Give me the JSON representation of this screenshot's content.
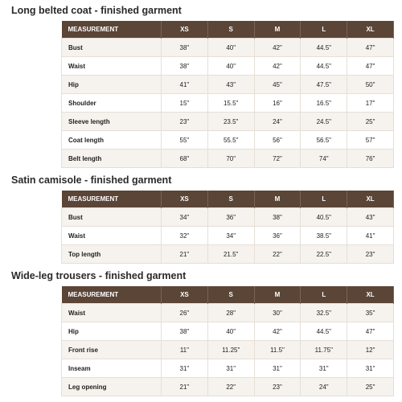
{
  "sections": [
    {
      "title": "Long belted coat - finished garment",
      "headers": [
        "MEASUREMENT",
        "XS",
        "S",
        "M",
        "L",
        "XL"
      ],
      "rows": [
        [
          "Bust",
          "38\"",
          "40\"",
          "42\"",
          "44.5\"",
          "47\""
        ],
        [
          "Waist",
          "38\"",
          "40\"",
          "42\"",
          "44.5\"",
          "47\""
        ],
        [
          "Hip",
          "41\"",
          "43\"",
          "45\"",
          "47.5\"",
          "50\""
        ],
        [
          "Shoulder",
          "15\"",
          "15.5\"",
          "16\"",
          "16.5\"",
          "17\""
        ],
        [
          "Sleeve length",
          "23\"",
          "23.5\"",
          "24\"",
          "24.5\"",
          "25\""
        ],
        [
          "Coat length",
          "55\"",
          "55.5\"",
          "56\"",
          "56.5\"",
          "57\""
        ],
        [
          "Belt length",
          "68\"",
          "70\"",
          "72\"",
          "74\"",
          "76\""
        ]
      ]
    },
    {
      "title": "Satin camisole - finished garment",
      "headers": [
        "MEASUREMENT",
        "XS",
        "S",
        "M",
        "L",
        "XL"
      ],
      "rows": [
        [
          "Bust",
          "34\"",
          "36\"",
          "38\"",
          "40.5\"",
          "43\""
        ],
        [
          "Waist",
          "32\"",
          "34\"",
          "36\"",
          "38.5\"",
          "41\""
        ],
        [
          "Top length",
          "21\"",
          "21.5\"",
          "22\"",
          "22.5\"",
          "23\""
        ]
      ]
    },
    {
      "title": "Wide-leg trousers - finished garment",
      "headers": [
        "MEASUREMENT",
        "XS",
        "S",
        "M",
        "L",
        "XL"
      ],
      "rows": [
        [
          "Waist",
          "26\"",
          "28\"",
          "30\"",
          "32.5\"",
          "35\""
        ],
        [
          "Hip",
          "38\"",
          "40\"",
          "42\"",
          "44.5\"",
          "47\""
        ],
        [
          "Front rise",
          "11\"",
          "11.25\"",
          "11.5\"",
          "11.75\"",
          "12\""
        ],
        [
          "Inseam",
          "31\"",
          "31\"",
          "31\"",
          "31\"",
          "31\""
        ],
        [
          "Leg opening",
          "21\"",
          "22\"",
          "23\"",
          "24\"",
          "25\""
        ]
      ]
    }
  ]
}
